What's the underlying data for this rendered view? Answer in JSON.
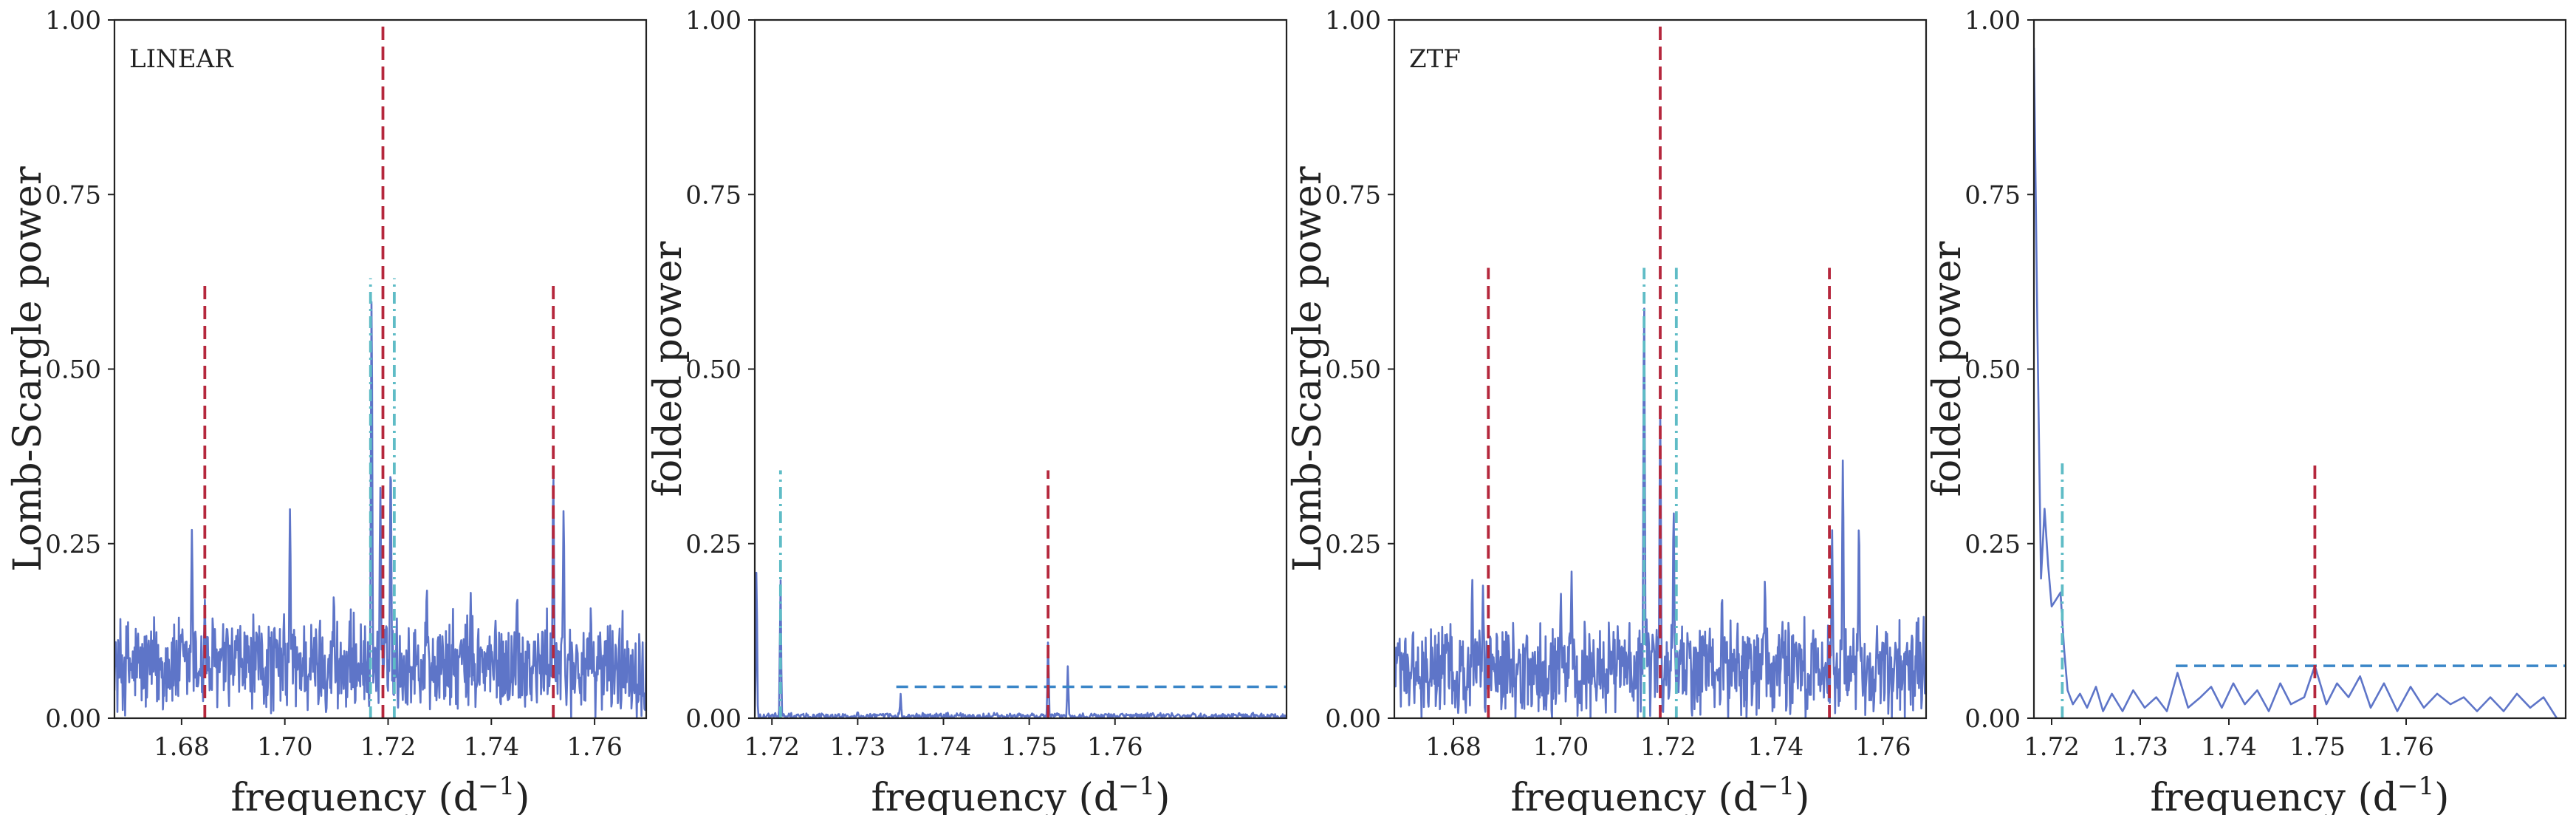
{
  "colors": {
    "signal": "#5e75c8",
    "main_peak_marker": "#b5273c",
    "side_peak_marker": "#5fbcc6",
    "threshold": "#3a86c8"
  },
  "chart_data": [
    {
      "type": "line",
      "panel_label": "LINEAR",
      "xlabel_base": "frequency (d",
      "xlabel_exp": "−1",
      "xlabel_end": ")",
      "ylabel": "Lomb-Scargle power",
      "xlim": [
        1.667,
        1.77
      ],
      "ylim": [
        0,
        1
      ],
      "xticks": [
        1.68,
        1.7,
        1.72,
        1.74,
        1.76
      ],
      "xtick_labels": [
        "1.68",
        "1.70",
        "1.72",
        "1.74",
        "1.76"
      ],
      "yticks": [
        0,
        0.25,
        0.5,
        0.75,
        1.0
      ],
      "ytick_labels": [
        "0.00",
        "0.25",
        "0.50",
        "0.75",
        "1.00"
      ],
      "series": [
        {
          "style": "noisy",
          "base": 0.075,
          "noise": 0.06,
          "peaks": [
            [
              1.682,
              0.27
            ],
            [
              1.6845,
              0.17
            ],
            [
              1.701,
              0.3
            ],
            [
              1.7168,
              0.6
            ],
            [
              1.7185,
              0.33
            ],
            [
              1.7205,
              0.37
            ],
            [
              1.752,
              0.35
            ],
            [
              1.754,
              0.3
            ],
            [
              1.7095,
              0.18
            ],
            [
              1.7275,
              0.19
            ],
            [
              1.736,
              0.18
            ],
            [
              1.745,
              0.18
            ]
          ]
        }
      ],
      "vlines": [
        {
          "x": 1.6845,
          "y0": 0,
          "y1": 0.625,
          "kind": "dashed",
          "color": "main_peak_marker"
        },
        {
          "x": 1.719,
          "y0": 0,
          "y1": 1.0,
          "kind": "dashed",
          "color": "main_peak_marker"
        },
        {
          "x": 1.752,
          "y0": 0,
          "y1": 0.625,
          "kind": "dashed",
          "color": "main_peak_marker"
        },
        {
          "x": 1.7166,
          "y0": 0,
          "y1": 0.63,
          "kind": "dashdot",
          "color": "side_peak_marker"
        },
        {
          "x": 1.7212,
          "y0": 0,
          "y1": 0.63,
          "kind": "dashdot",
          "color": "side_peak_marker"
        }
      ],
      "hlines": []
    },
    {
      "type": "line",
      "panel_label": "",
      "xlabel_base": "frequency (d",
      "xlabel_exp": "−1",
      "xlabel_end": ")",
      "ylabel": "folded power",
      "xlim": [
        1.718,
        1.78
      ],
      "ylim": [
        0,
        1
      ],
      "xticks": [
        1.72,
        1.73,
        1.74,
        1.75,
        1.76
      ],
      "xtick_labels": [
        "1.72",
        "1.73",
        "1.74",
        "1.75",
        "1.76"
      ],
      "yticks": [
        0,
        0.25,
        0.5,
        0.75,
        1.0
      ],
      "ytick_labels": [
        "0.00",
        "0.25",
        "0.50",
        "0.75",
        "1.00"
      ],
      "series": [
        {
          "style": "quiet",
          "base": 0.005,
          "noise": 0.006,
          "peaks": [
            [
              1.7182,
              0.22
            ],
            [
              1.721,
              0.2
            ],
            [
              1.735,
              0.035
            ],
            [
              1.7522,
              0.11
            ],
            [
              1.7545,
              0.075
            ],
            [
              1.73,
              0.01
            ]
          ]
        }
      ],
      "vlines": [
        {
          "x": 1.721,
          "y0": 0,
          "y1": 0.355,
          "kind": "dashdot",
          "color": "side_peak_marker"
        },
        {
          "x": 1.7522,
          "y0": 0,
          "y1": 0.355,
          "kind": "dashed",
          "color": "main_peak_marker"
        }
      ],
      "hlines": [
        {
          "y": 0.045,
          "x0": 1.7345,
          "x1": 1.78,
          "kind": "dashed",
          "color": "threshold"
        }
      ]
    },
    {
      "type": "line",
      "panel_label": "ZTF",
      "xlabel_base": "frequency (d",
      "xlabel_exp": "−1",
      "xlabel_end": ")",
      "ylabel": "Lomb-Scargle power",
      "xlim": [
        1.669,
        1.768
      ],
      "ylim": [
        0,
        1
      ],
      "xticks": [
        1.68,
        1.7,
        1.72,
        1.74,
        1.76
      ],
      "xtick_labels": [
        "1.68",
        "1.70",
        "1.72",
        "1.74",
        "1.76"
      ],
      "yticks": [
        0,
        0.25,
        0.5,
        0.75,
        1.0
      ],
      "ytick_labels": [
        "0.00",
        "0.25",
        "0.50",
        "0.75",
        "1.00"
      ],
      "series": [
        {
          "style": "noisy",
          "base": 0.07,
          "noise": 0.055,
          "peaks": [
            [
              1.6835,
              0.2
            ],
            [
              1.6855,
              0.19
            ],
            [
              1.702,
              0.21
            ],
            [
              1.7155,
              0.6
            ],
            [
              1.7185,
              0.44
            ],
            [
              1.721,
              0.3
            ],
            [
              1.7525,
              0.37
            ],
            [
              1.7505,
              0.27
            ],
            [
              1.7555,
              0.28
            ],
            [
              1.738,
              0.2
            ],
            [
              1.73,
              0.18
            ],
            [
              1.7,
              0.18
            ]
          ]
        }
      ],
      "vlines": [
        {
          "x": 1.6865,
          "y0": 0,
          "y1": 0.645,
          "kind": "dashed",
          "color": "main_peak_marker"
        },
        {
          "x": 1.7185,
          "y0": 0,
          "y1": 1.0,
          "kind": "dashed",
          "color": "main_peak_marker"
        },
        {
          "x": 1.75,
          "y0": 0,
          "y1": 0.645,
          "kind": "dashed",
          "color": "main_peak_marker"
        },
        {
          "x": 1.7155,
          "y0": 0,
          "y1": 0.645,
          "kind": "dashdot",
          "color": "side_peak_marker"
        },
        {
          "x": 1.7215,
          "y0": 0,
          "y1": 0.645,
          "kind": "dashdot",
          "color": "side_peak_marker"
        }
      ],
      "hlines": []
    },
    {
      "type": "line",
      "panel_label": "",
      "xlabel_base": "frequency (d",
      "xlabel_exp": "−1",
      "xlabel_end": ")",
      "ylabel": "folded power",
      "xlim": [
        1.718,
        1.778
      ],
      "ylim": [
        0,
        1
      ],
      "xticks": [
        1.72,
        1.73,
        1.74,
        1.75,
        1.76
      ],
      "xtick_labels": [
        "1.72",
        "1.73",
        "1.74",
        "1.75",
        "1.76"
      ],
      "yticks": [
        0,
        0.25,
        0.5,
        0.75,
        1.0
      ],
      "ytick_labels": [
        "0.00",
        "0.25",
        "0.50",
        "0.75",
        "1.00"
      ],
      "series": [
        {
          "style": "smooth",
          "points": [
            [
              1.718,
              0.96
            ],
            [
              1.7184,
              0.55
            ],
            [
              1.7188,
              0.2
            ],
            [
              1.7192,
              0.3
            ],
            [
              1.7196,
              0.22
            ],
            [
              1.72,
              0.16
            ],
            [
              1.7205,
              0.17
            ],
            [
              1.721,
              0.18
            ],
            [
              1.7214,
              0.1
            ],
            [
              1.7218,
              0.04
            ],
            [
              1.7224,
              0.02
            ],
            [
              1.7232,
              0.035
            ],
            [
              1.724,
              0.015
            ],
            [
              1.725,
              0.045
            ],
            [
              1.7258,
              0.01
            ],
            [
              1.7268,
              0.035
            ],
            [
              1.728,
              0.01
            ],
            [
              1.7292,
              0.04
            ],
            [
              1.7305,
              0.015
            ],
            [
              1.7318,
              0.03
            ],
            [
              1.733,
              0.01
            ],
            [
              1.7342,
              0.065
            ],
            [
              1.7354,
              0.015
            ],
            [
              1.7368,
              0.03
            ],
            [
              1.738,
              0.045
            ],
            [
              1.7392,
              0.015
            ],
            [
              1.7405,
              0.05
            ],
            [
              1.7418,
              0.02
            ],
            [
              1.7432,
              0.04
            ],
            [
              1.7445,
              0.01
            ],
            [
              1.7458,
              0.05
            ],
            [
              1.747,
              0.02
            ],
            [
              1.7485,
              0.03
            ],
            [
              1.7497,
              0.075
            ],
            [
              1.751,
              0.02
            ],
            [
              1.7522,
              0.05
            ],
            [
              1.7535,
              0.03
            ],
            [
              1.7548,
              0.06
            ],
            [
              1.756,
              0.015
            ],
            [
              1.7575,
              0.05
            ],
            [
              1.759,
              0.01
            ],
            [
              1.7605,
              0.045
            ],
            [
              1.762,
              0.015
            ],
            [
              1.7635,
              0.035
            ],
            [
              1.765,
              0.02
            ],
            [
              1.7665,
              0.03
            ],
            [
              1.768,
              0.01
            ],
            [
              1.7695,
              0.03
            ],
            [
              1.771,
              0.01
            ],
            [
              1.7725,
              0.035
            ],
            [
              1.774,
              0.015
            ],
            [
              1.7755,
              0.03
            ],
            [
              1.777,
              0.0
            ]
          ]
        }
      ],
      "vlines": [
        {
          "x": 1.7212,
          "y0": 0,
          "y1": 0.365,
          "kind": "dashdot",
          "color": "side_peak_marker"
        },
        {
          "x": 1.7497,
          "y0": 0,
          "y1": 0.365,
          "kind": "dashed",
          "color": "main_peak_marker"
        }
      ],
      "hlines": [
        {
          "y": 0.075,
          "x0": 1.734,
          "x1": 1.778,
          "kind": "dashed",
          "color": "threshold"
        }
      ]
    }
  ]
}
